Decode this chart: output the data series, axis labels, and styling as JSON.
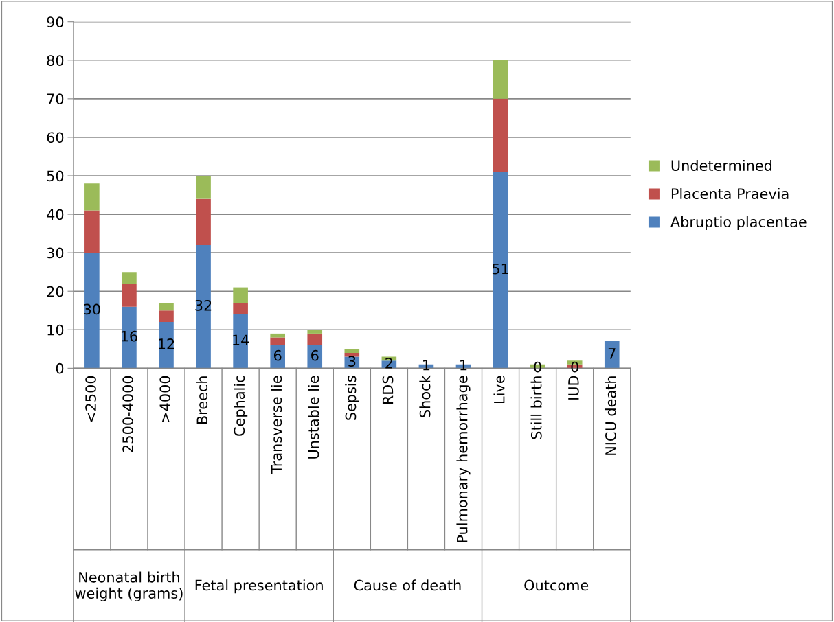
{
  "chart_data": {
    "type": "bar",
    "stacked": true,
    "categories": [
      "<2500",
      "2500-4000",
      ">4000",
      "Breech",
      "Cephalic",
      "Transverse lie",
      "Unstable lie",
      "Sepsis",
      "RDS",
      "Shock",
      "Pulmonary hemorrhage",
      "Live",
      "Still birth",
      "IUD",
      "NICU death"
    ],
    "series": [
      {
        "name": "Abruptio placentae",
        "color": "#4f81bd",
        "values": [
          30,
          16,
          12,
          32,
          14,
          6,
          6,
          3,
          2,
          1,
          1,
          51,
          0,
          0,
          7
        ],
        "value_labels": [
          "30",
          "16",
          "12",
          "32",
          "14",
          "6",
          "6",
          "3",
          "2",
          "1",
          "1",
          "51",
          "0",
          "0",
          "7"
        ]
      },
      {
        "name": "Placenta Praevia",
        "color": "#c0504d",
        "values": [
          11,
          6,
          3,
          12,
          3,
          2,
          3,
          1,
          0,
          0,
          0,
          19,
          0,
          1,
          0
        ]
      },
      {
        "name": "Undetermined",
        "color": "#9bbb59",
        "values": [
          7,
          3,
          2,
          6,
          4,
          1,
          1,
          1,
          1,
          0,
          0,
          10,
          1,
          1,
          0
        ]
      }
    ],
    "ylim": [
      0,
      90
    ],
    "yticks": [
      0,
      10,
      20,
      30,
      40,
      50,
      60,
      70,
      80,
      90
    ],
    "grid": "y",
    "legend": "right",
    "annotations": [
      "Neonatal birth\nweight (grams)",
      "Fetal presentation",
      "Cause of death",
      "Outcome"
    ]
  }
}
